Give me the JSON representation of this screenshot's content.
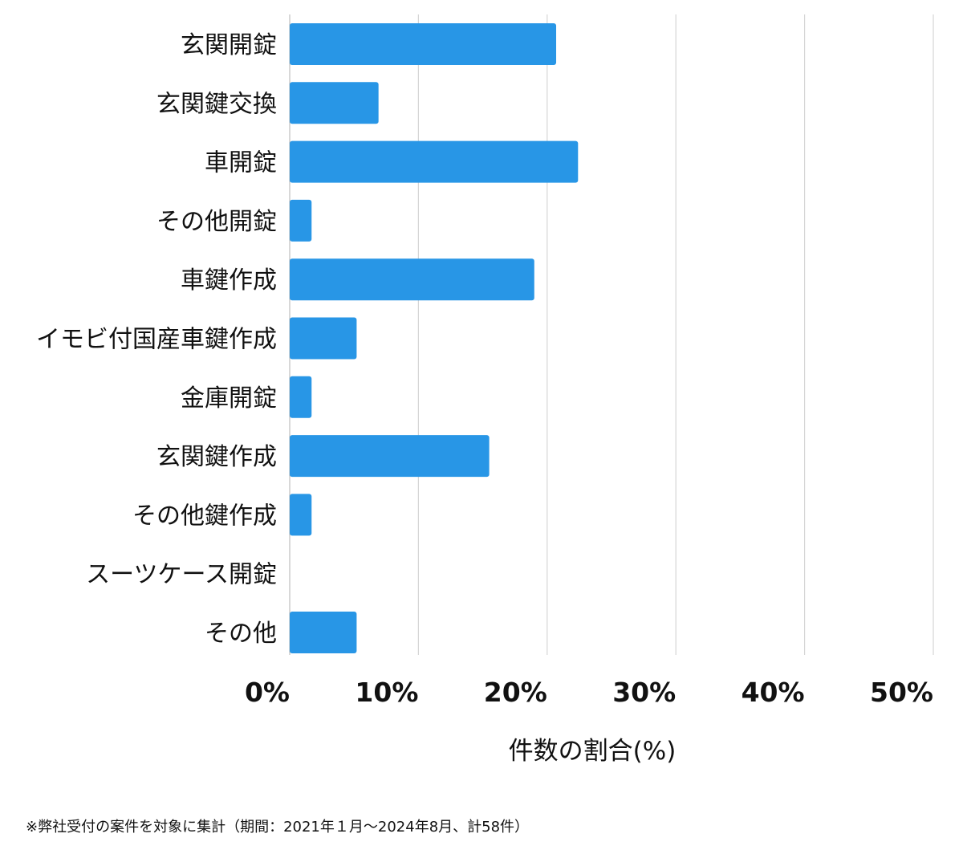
{
  "chart_data": {
    "type": "bar",
    "orientation": "horizontal",
    "categories": [
      "玄関開錠",
      "玄関鍵交換",
      "車開錠",
      "その他開錠",
      "車鍵作成",
      "イモビ付国産車鍵作成",
      "金庫開錠",
      "玄関鍵作成",
      "その他鍵作成",
      "スーツケース開錠",
      "その他"
    ],
    "values": [
      20.7,
      6.9,
      22.4,
      1.7,
      19.0,
      5.2,
      1.7,
      15.5,
      1.7,
      0,
      5.2
    ],
    "xlim": [
      0,
      50
    ],
    "xticks": [
      "0%",
      "10%",
      "20%",
      "30%",
      "40%",
      "50%"
    ],
    "xlabel": "件数の割合(%)",
    "grid": "vertical",
    "bar_color": "#2896e6"
  },
  "footnote": "※弊社受付の案件を対象に集計（期間：2021年１月〜2024年8月、計58件）"
}
